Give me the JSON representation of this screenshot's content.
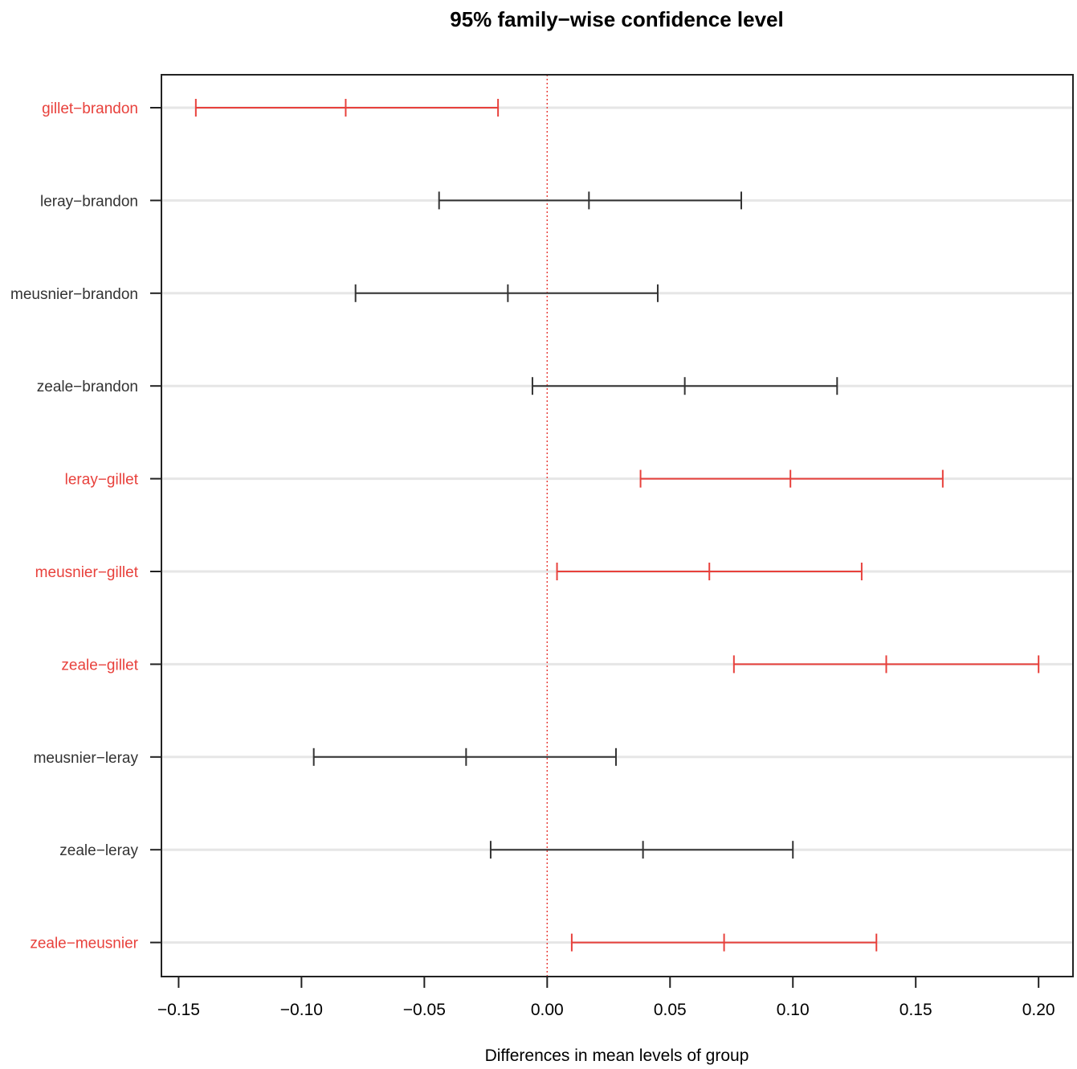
{
  "chart_data": {
    "type": "errorbar",
    "title": "95% family−wise confidence level",
    "xlabel": "Differences in mean levels of group",
    "ylabel": "",
    "xlim": [
      -0.157,
      0.214
    ],
    "xticks": [
      -0.15,
      -0.1,
      -0.05,
      0.0,
      0.05,
      0.1,
      0.15,
      0.2
    ],
    "xtick_labels": [
      "−0.15",
      "−0.10",
      "−0.05",
      "0.00",
      "0.05",
      "0.10",
      "0.15",
      "0.20"
    ],
    "reference_line": 0.0,
    "grid": "horizontal",
    "comparisons": [
      {
        "label": "gillet−brandon",
        "lwr": -0.143,
        "diff": -0.082,
        "upr": -0.02,
        "significant": true
      },
      {
        "label": "leray−brandon",
        "lwr": -0.044,
        "diff": 0.017,
        "upr": 0.079,
        "significant": false
      },
      {
        "label": "meusnier−brandon",
        "lwr": -0.078,
        "diff": -0.016,
        "upr": 0.045,
        "significant": false
      },
      {
        "label": "zeale−brandon",
        "lwr": -0.006,
        "diff": 0.056,
        "upr": 0.118,
        "significant": false
      },
      {
        "label": "leray−gillet",
        "lwr": 0.038,
        "diff": 0.099,
        "upr": 0.161,
        "significant": true
      },
      {
        "label": "meusnier−gillet",
        "lwr": 0.004,
        "diff": 0.066,
        "upr": 0.128,
        "significant": true
      },
      {
        "label": "zeale−gillet",
        "lwr": 0.076,
        "diff": 0.138,
        "upr": 0.2,
        "significant": true
      },
      {
        "label": "meusnier−leray",
        "lwr": -0.095,
        "diff": -0.033,
        "upr": 0.028,
        "significant": false
      },
      {
        "label": "zeale−leray",
        "lwr": -0.023,
        "diff": 0.039,
        "upr": 0.1,
        "significant": false
      },
      {
        "label": "zeale−meusnier",
        "lwr": 0.01,
        "diff": 0.072,
        "upr": 0.134,
        "significant": true
      }
    ],
    "colors": {
      "significant": "#e8413c",
      "not_significant": "#333333",
      "reference_line": "#e8413c",
      "grid": "#e6e6e6",
      "axis": "#222222"
    }
  }
}
